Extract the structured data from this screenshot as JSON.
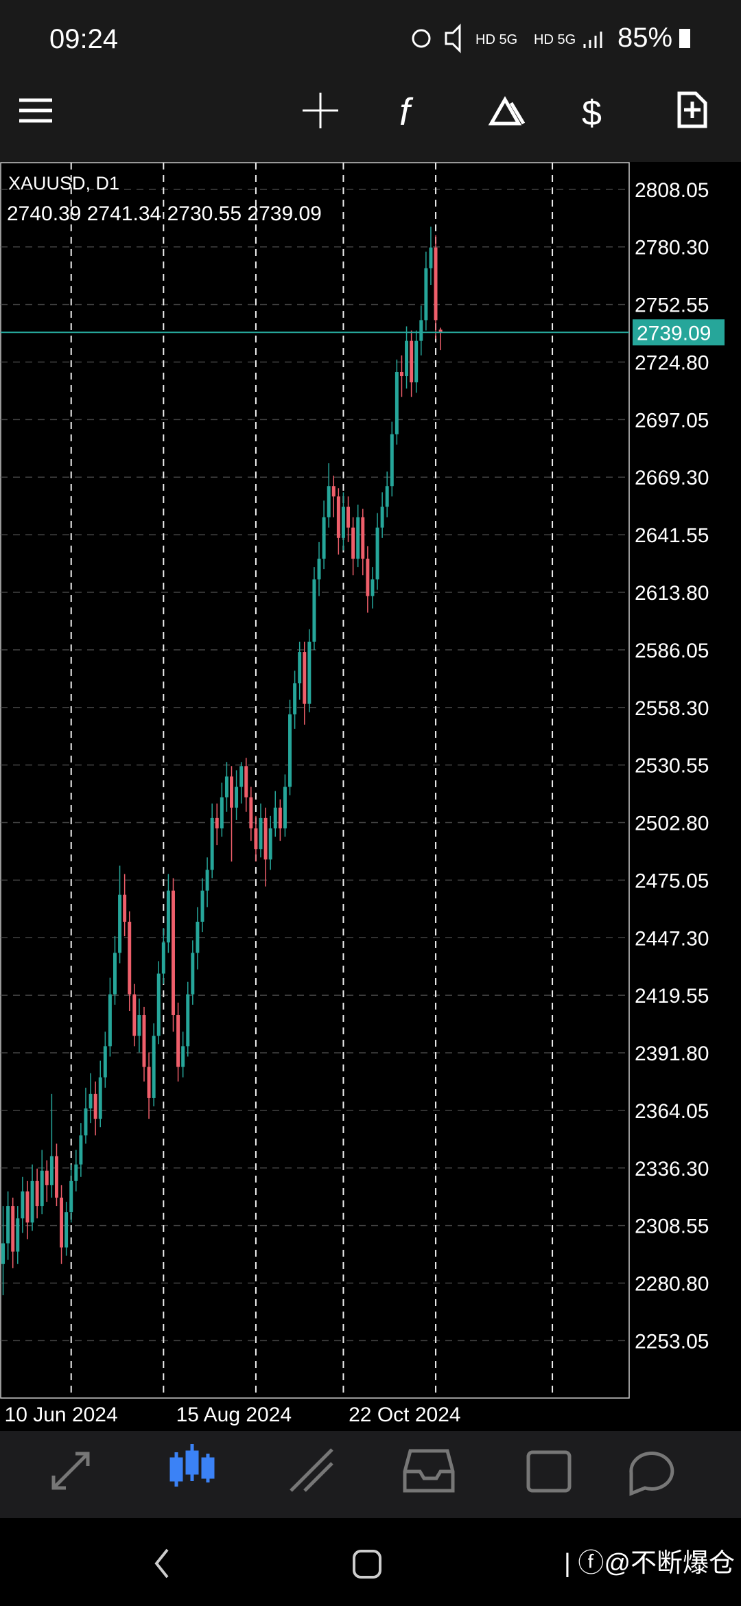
{
  "status_bar": {
    "time": "09:24",
    "battery": "85%"
  },
  "chart_data": {
    "type": "candlestick",
    "symbol": "XAUUSD, D1",
    "up_color": "#26a69a",
    "down_color": "#ef5f6b",
    "price_line_color": "#26a69a",
    "grid": true,
    "xlim": [
      -0.5,
      128.8
    ],
    "ylim": [
      2225.4,
      2820.9
    ],
    "xticks": [
      14,
      33,
      52,
      70,
      89,
      113
    ],
    "xlabels": [
      {
        "value": 0,
        "label": "10 Jun 2024"
      },
      {
        "value": 35.3,
        "label": "15 Aug 2024"
      },
      {
        "value": 70.8,
        "label": "22 Oct 2024"
      }
    ],
    "yticks": [
      2808.05,
      {
        "value": 2780.3,
        "label": "2780.30"
      },
      2752.55,
      {
        "value": 2724.8,
        "label": "2724.80"
      },
      2697.05,
      {
        "value": 2669.3,
        "label": "2669.30"
      },
      2641.55,
      {
        "value": 2613.8,
        "label": "2613.80"
      },
      2586.05,
      {
        "value": 2558.3,
        "label": "2558.30"
      },
      2530.55,
      {
        "value": 2502.8,
        "label": "2502.80"
      },
      2475.05,
      {
        "value": 2447.3,
        "label": "2447.30"
      },
      2419.55,
      {
        "value": 2391.8,
        "label": "2391.80"
      },
      2364.05,
      {
        "value": 2336.3,
        "label": "2336.30"
      },
      2308.55,
      {
        "value": 2280.8,
        "label": "2280.80"
      },
      2253.05
    ],
    "candles": [
      [
        2290,
        2318,
        2275,
        2300
      ],
      [
        2300,
        2325,
        2292,
        2318
      ],
      [
        2318,
        2322,
        2288,
        2296
      ],
      [
        2296,
        2318,
        2290,
        2312
      ],
      [
        2312,
        2332,
        2305,
        2325
      ],
      [
        2325,
        2330,
        2302,
        2310
      ],
      [
        2310,
        2338,
        2306,
        2330
      ],
      [
        2330,
        2336,
        2312,
        2318
      ],
      [
        2318,
        2345,
        2314,
        2335
      ],
      [
        2335,
        2340,
        2320,
        2328
      ],
      [
        2328,
        2372,
        2322,
        2342
      ],
      [
        2342,
        2348,
        2318,
        2322
      ],
      [
        2322,
        2328,
        2290,
        2298
      ],
      [
        2298,
        2320,
        2294,
        2315
      ],
      [
        2315,
        2338,
        2310,
        2330
      ],
      [
        2330,
        2345,
        2325,
        2338
      ],
      [
        2338,
        2358,
        2332,
        2352
      ],
      [
        2352,
        2375,
        2348,
        2365
      ],
      [
        2365,
        2382,
        2358,
        2372
      ],
      [
        2372,
        2378,
        2352,
        2360
      ],
      [
        2360,
        2388,
        2356,
        2380
      ],
      [
        2380,
        2402,
        2375,
        2395
      ],
      [
        2395,
        2428,
        2390,
        2420
      ],
      [
        2420,
        2448,
        2415,
        2440
      ],
      [
        2440,
        2482,
        2435,
        2468
      ],
      [
        2468,
        2478,
        2448,
        2455
      ],
      [
        2455,
        2460,
        2412,
        2420
      ],
      [
        2420,
        2425,
        2395,
        2400
      ],
      [
        2400,
        2418,
        2392,
        2410
      ],
      [
        2410,
        2414,
        2378,
        2385
      ],
      [
        2385,
        2392,
        2360,
        2370
      ],
      [
        2370,
        2406,
        2366,
        2400
      ],
      [
        2400,
        2436,
        2396,
        2430
      ],
      [
        2430,
        2452,
        2425,
        2445
      ],
      [
        2445,
        2478,
        2440,
        2470
      ],
      [
        2470,
        2476,
        2402,
        2410
      ],
      [
        2410,
        2416,
        2378,
        2385
      ],
      [
        2385,
        2402,
        2380,
        2395
      ],
      [
        2395,
        2426,
        2390,
        2420
      ],
      [
        2420,
        2446,
        2415,
        2440
      ],
      [
        2440,
        2462,
        2432,
        2455
      ],
      [
        2455,
        2476,
        2450,
        2470
      ],
      [
        2470,
        2486,
        2462,
        2480
      ],
      [
        2480,
        2512,
        2476,
        2505
      ],
      [
        2505,
        2512,
        2492,
        2500
      ],
      [
        2500,
        2522,
        2496,
        2515
      ],
      [
        2515,
        2532,
        2508,
        2525
      ],
      [
        2525,
        2530,
        2484,
        2510
      ],
      [
        2510,
        2528,
        2504,
        2520
      ],
      [
        2520,
        2532,
        2512,
        2530
      ],
      [
        2530,
        2534,
        2508,
        2515
      ],
      [
        2515,
        2520,
        2494,
        2500
      ],
      [
        2500,
        2506,
        2484,
        2490
      ],
      [
        2490,
        2512,
        2486,
        2505
      ],
      [
        2505,
        2510,
        2472,
        2485
      ],
      [
        2485,
        2506,
        2480,
        2500
      ],
      [
        2500,
        2518,
        2496,
        2510
      ],
      [
        2510,
        2514,
        2494,
        2500
      ],
      [
        2500,
        2526,
        2496,
        2520
      ],
      [
        2520,
        2562,
        2516,
        2555
      ],
      [
        2555,
        2576,
        2548,
        2570
      ],
      [
        2570,
        2590,
        2562,
        2585
      ],
      [
        2585,
        2590,
        2550,
        2560
      ],
      [
        2560,
        2596,
        2556,
        2590
      ],
      [
        2590,
        2626,
        2586,
        2620
      ],
      [
        2620,
        2638,
        2612,
        2630
      ],
      [
        2630,
        2658,
        2625,
        2650
      ],
      [
        2650,
        2676,
        2645,
        2665
      ],
      [
        2665,
        2670,
        2650,
        2660
      ],
      [
        2660,
        2664,
        2632,
        2640
      ],
      [
        2640,
        2662,
        2634,
        2655
      ],
      [
        2655,
        2660,
        2638,
        2645
      ],
      [
        2645,
        2650,
        2622,
        2630
      ],
      [
        2630,
        2656,
        2626,
        2650
      ],
      [
        2650,
        2654,
        2622,
        2630
      ],
      [
        2630,
        2636,
        2604,
        2612
      ],
      [
        2612,
        2626,
        2606,
        2620
      ],
      [
        2620,
        2652,
        2615,
        2645
      ],
      [
        2645,
        2662,
        2640,
        2655
      ],
      [
        2655,
        2672,
        2650,
        2665
      ],
      [
        2665,
        2696,
        2660,
        2690
      ],
      [
        2690,
        2726,
        2685,
        2720
      ],
      [
        2720,
        2728,
        2708,
        2718
      ],
      [
        2718,
        2742,
        2712,
        2735
      ],
      [
        2735,
        2740,
        2708,
        2715
      ],
      [
        2715,
        2740,
        2710,
        2735
      ],
      [
        2735,
        2752,
        2728,
        2745
      ],
      [
        2745,
        2778,
        2740,
        2770
      ],
      [
        2770,
        2790,
        2762,
        2780
      ],
      [
        2780,
        2786,
        2736,
        2745
      ],
      [
        2740.39,
        2741.34,
        2730.55,
        2739.09
      ]
    ]
  },
  "watermark": "@不断爆仓"
}
